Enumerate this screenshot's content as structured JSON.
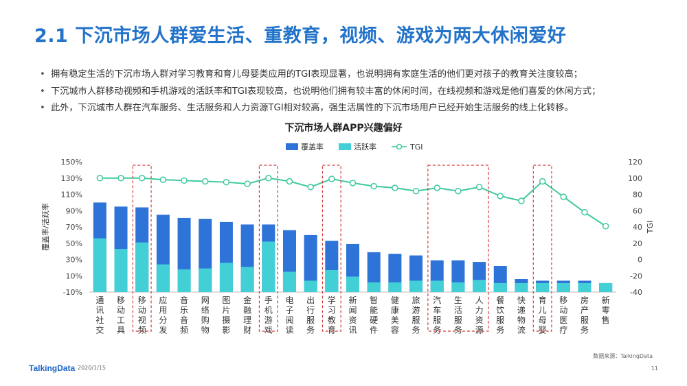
{
  "page": {
    "title": "2.1 下沉市场人群爱生活、重教育，视频、游戏为两大休闲爱好",
    "bullets": [
      "拥有稳定生活的下沉市场人群对学习教育和育儿母婴类应用的TGI表现显著，也说明拥有家庭生活的他们更对孩子的教育关注度较高；",
      "下沉城市人群移动视频和手机游戏的活跃率和TGI表现较高，也说明他们拥有较丰富的休闲时间，在线视频和游戏是他们喜爱的休闲方式；",
      "此外，下沉城市人群在汽车服务、生活服务和人力资源TGI相对较高，强生活属性的下沉市场用户已经开始生活服务的线上化转移。"
    ],
    "source": "数据来源：TalkingData",
    "brand": "TalkingData",
    "date": "2020/1/15",
    "page_number": "11"
  },
  "chart_data": {
    "type": "bar",
    "title": "下沉市场人群APP兴趣偏好",
    "categories": [
      "通讯社交",
      "移动工具",
      "移动视频",
      "应用分发",
      "音乐音频",
      "网络购物",
      "图片摄影",
      "金融理财",
      "手机游戏",
      "电子阅读",
      "出行服务",
      "学习教育",
      "新闻资讯",
      "智能硬件",
      "健康美容",
      "旅游服务",
      "汽车服务",
      "生活服务",
      "人力资源",
      "餐饮服务",
      "快递物流",
      "育儿母婴",
      "移动医疗",
      "房产服务",
      "新零售"
    ],
    "series": [
      {
        "name": "覆盖率",
        "axis": "left",
        "color": "#2e73d8",
        "values": [
          100,
          95,
          94,
          85,
          81,
          80,
          76,
          73,
          73,
          66,
          60,
          53,
          49,
          39,
          37,
          35,
          29,
          29,
          27,
          22,
          6,
          4,
          4,
          4,
          1
        ]
      },
      {
        "name": "活跃率",
        "axis": "left",
        "color": "#43cfd6",
        "values": [
          56,
          43,
          51,
          24,
          18,
          19,
          26,
          21,
          52,
          15,
          4,
          17,
          9,
          2,
          2,
          4,
          4,
          2,
          5,
          1,
          1,
          1,
          1,
          1,
          1
        ]
      },
      {
        "name": "TGI",
        "axis": "right",
        "type": "line",
        "color": "#3ec9a0",
        "values": [
          100,
          100,
          100,
          98,
          97,
          96,
          95,
          93,
          100,
          96,
          89,
          99,
          94,
          90,
          88,
          84,
          88,
          84,
          89,
          78,
          72,
          96,
          77,
          58,
          41
        ]
      }
    ],
    "ylabel": "覆盖率/活跃率",
    "y2label": "TGI",
    "ylim": [
      -10,
      150
    ],
    "yticks": [
      "-10%",
      "10%",
      "30%",
      "50%",
      "70%",
      "90%",
      "110%",
      "130%",
      "150%"
    ],
    "y2lim": [
      -40,
      120
    ],
    "y2ticks": [
      "-40",
      "-20",
      "0",
      "20",
      "40",
      "60",
      "80",
      "100",
      "120"
    ],
    "highlighted": [
      "移动视频",
      "手机游戏",
      "学习教育",
      "汽车服务",
      "生活服务",
      "人力资源",
      "育儿母婴"
    ],
    "legend_position": "top-center",
    "grid": false
  }
}
